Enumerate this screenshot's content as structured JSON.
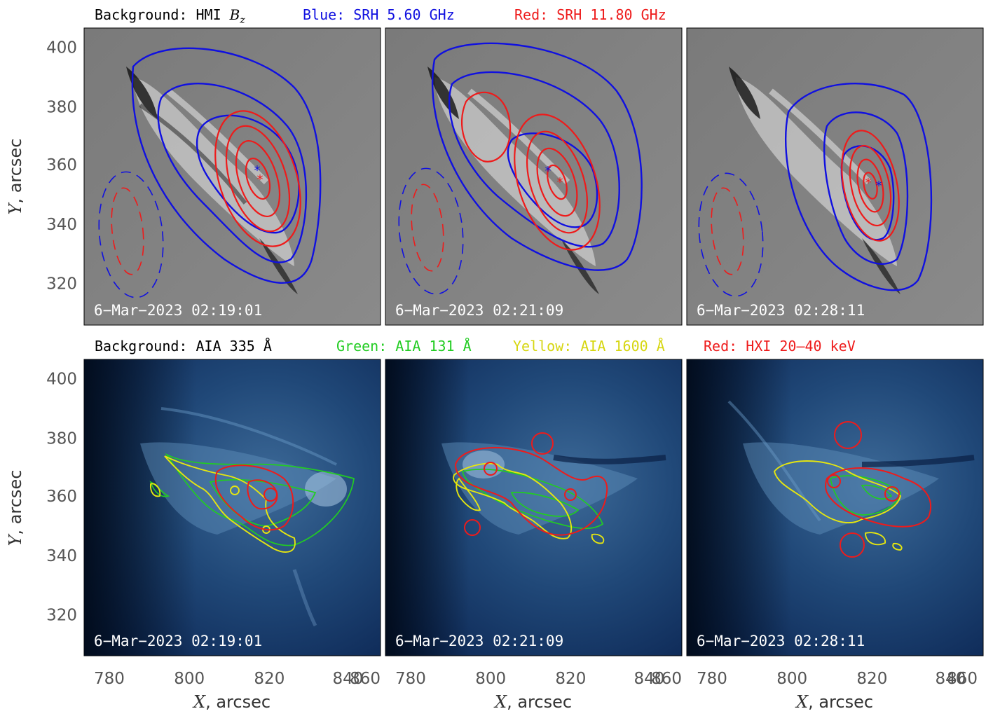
{
  "top_legend": {
    "background": "Background: HMI ",
    "background_var": "B",
    "background_sub": "z",
    "blue": "Blue: SRH 5.60 GHz",
    "red": "Red: SRH 11.80 GHz"
  },
  "bottom_legend": {
    "background": "Background: AIA 335 Å",
    "green": "Green: AIA 131 Å",
    "yellow": "Yellow: AIA 1600 Å",
    "red": "Red: HXI 20–40 keV"
  },
  "timestamps": [
    "6−Mar−2023 02:19:01",
    "6−Mar−2023 02:21:09",
    "6−Mar−2023 02:28:11"
  ],
  "axes": {
    "x_label_var": "X",
    "x_label_unit": ", arcsec",
    "y_label_var": "Y",
    "y_label_unit": ", arcsec",
    "x_ticks": [
      "780",
      "800",
      "820",
      "840",
      "860"
    ],
    "y_ticks": [
      "400",
      "380",
      "360",
      "340",
      "320"
    ]
  },
  "colors": {
    "blue": "#1010e0",
    "red": "#ee1b1b",
    "green": "#22cc22",
    "yellow": "#e6e60f"
  }
}
